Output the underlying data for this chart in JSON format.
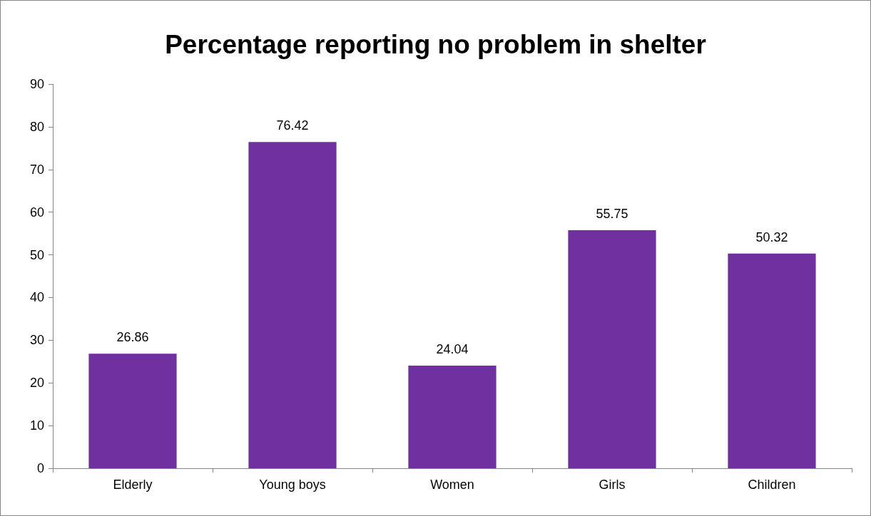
{
  "chart_data": {
    "type": "bar",
    "title": "Percentage reporting no problem in shelter",
    "categories": [
      "Elderly",
      "Young boys",
      "Women",
      "Girls",
      "Children"
    ],
    "values": [
      26.86,
      76.42,
      24.04,
      55.75,
      50.32
    ],
    "color": "#7030a0",
    "ylim": [
      0,
      90
    ],
    "yticks": [
      0,
      10,
      20,
      30,
      40,
      50,
      60,
      70,
      80,
      90
    ],
    "grid": false,
    "data_labels": true
  }
}
